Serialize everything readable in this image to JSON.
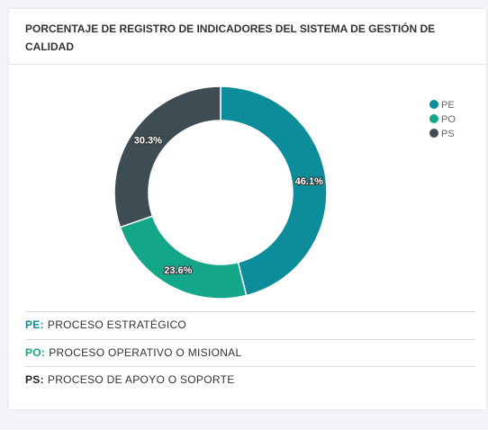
{
  "chart_data": {
    "type": "donut",
    "title": "PORCENTAJE DE REGISTRO DE INDICADORES DEL SISTEMA DE GESTIÓN DE CALIDAD",
    "categories": [
      "PE",
      "PO",
      "PS"
    ],
    "values": [
      46.1,
      23.6,
      30.3
    ],
    "value_labels": [
      "46.1%",
      "23.6%",
      "30.3%"
    ],
    "colors": [
      "#0d8c99",
      "#14a689",
      "#3e4d53"
    ],
    "legend": "top-right"
  },
  "definitions": [
    {
      "code": "PE:",
      "text": "PROCESO ESTRATÉGICO"
    },
    {
      "code": "PO:",
      "text": "PROCESO OPERATIVO O MISIONAL"
    },
    {
      "code": "PS:",
      "text": "PROCESO DE APOYO O SOPORTE"
    }
  ]
}
